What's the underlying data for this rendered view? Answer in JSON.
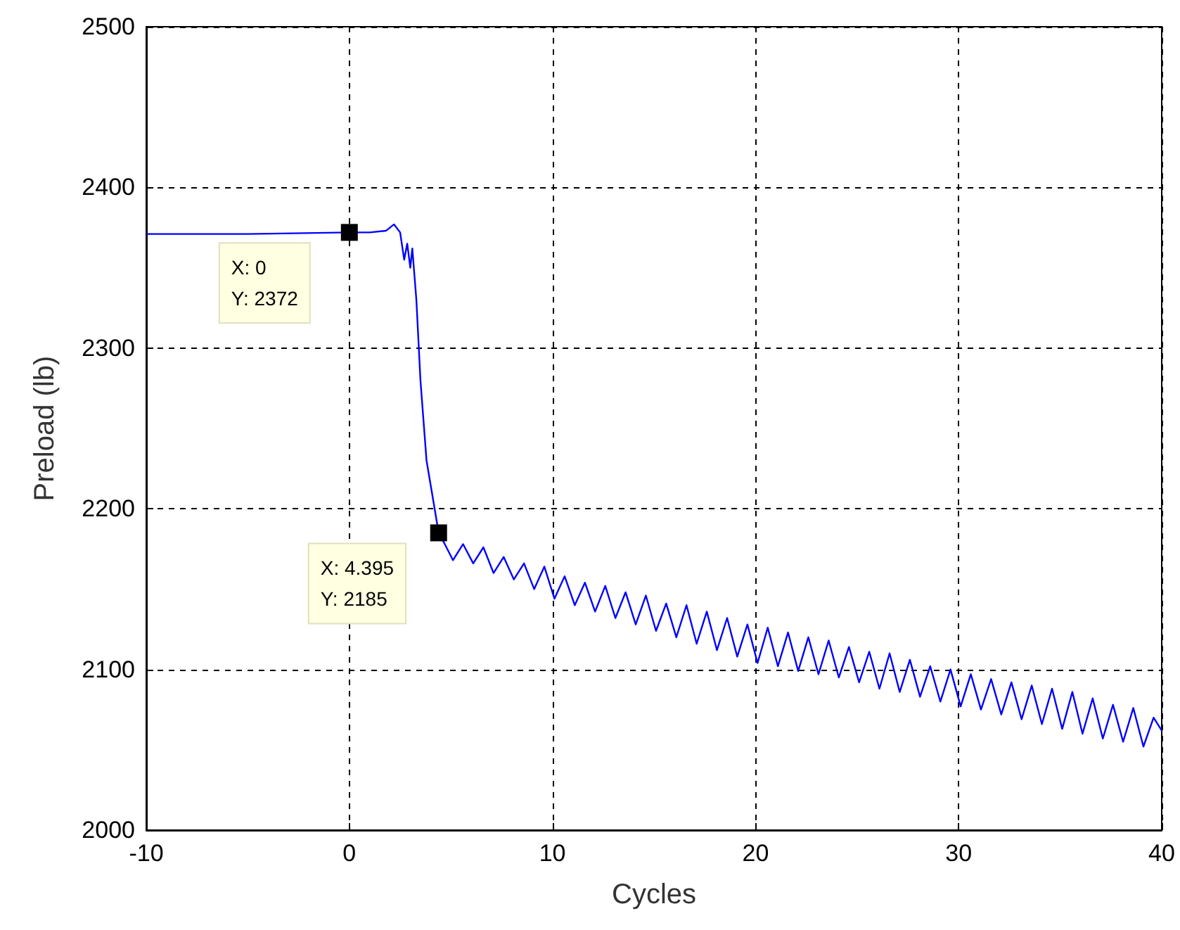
{
  "chart_data": {
    "type": "line",
    "xlabel": "Cycles",
    "ylabel": "Preload (lb)",
    "x": [
      -10,
      -5,
      0,
      1,
      1.8,
      2.2,
      2.5,
      2.7,
      2.85,
      3.0,
      3.1,
      3.3,
      3.5,
      3.8,
      4.2,
      4.395,
      4.7,
      5.1,
      5.6,
      6.1,
      6.6,
      7.1,
      7.6,
      8.1,
      8.6,
      9.1,
      9.6,
      10.1,
      10.6,
      11.1,
      11.6,
      12.1,
      12.6,
      13.1,
      13.6,
      14.1,
      14.6,
      15.1,
      15.6,
      16.1,
      16.6,
      17.1,
      17.6,
      18.1,
      18.6,
      19.1,
      19.6,
      20.1,
      20.6,
      21.1,
      21.6,
      22.1,
      22.6,
      23.1,
      23.6,
      24.1,
      24.6,
      25.1,
      25.6,
      26.1,
      26.6,
      27.1,
      27.6,
      28.1,
      28.6,
      29.1,
      29.6,
      30.1,
      30.6,
      31.1,
      31.6,
      32.1,
      32.6,
      33.1,
      33.6,
      34.1,
      34.6,
      35.1,
      35.6,
      36.1,
      36.6,
      37.1,
      37.6,
      38.1,
      38.6,
      39.1,
      39.6,
      40
    ],
    "series": [
      {
        "color": "#0000ff",
        "values": [
          2371,
          2371,
          2372,
          2372,
          2373,
          2377,
          2372,
          2355,
          2365,
          2350,
          2362,
          2330,
          2280,
          2230,
          2200,
          2185,
          2178,
          2168,
          2178,
          2166,
          2176,
          2160,
          2170,
          2156,
          2166,
          2150,
          2164,
          2144,
          2158,
          2140,
          2154,
          2136,
          2152,
          2132,
          2148,
          2128,
          2146,
          2124,
          2141,
          2120,
          2140,
          2116,
          2136,
          2112,
          2132,
          2108,
          2128,
          2104,
          2126,
          2102,
          2123,
          2099,
          2120,
          2097,
          2118,
          2095,
          2114,
          2092,
          2111,
          2088,
          2110,
          2086,
          2106,
          2083,
          2102,
          2080,
          2100,
          2077,
          2097,
          2075,
          2094,
          2072,
          2092,
          2069,
          2090,
          2066,
          2088,
          2063,
          2086,
          2060,
          2082,
          2057,
          2078,
          2055,
          2076,
          2052,
          2070,
          2062
        ]
      }
    ],
    "xlim": [
      -10,
      40
    ],
    "xticks": [
      -10,
      0,
      10,
      20,
      30,
      40
    ],
    "ylim": [
      2000,
      2500
    ],
    "yticks": [
      2000,
      2100,
      2200,
      2300,
      2400,
      2500
    ],
    "grid": true,
    "marker": "none",
    "line_style": "solid",
    "annotations": [
      {
        "text": "X: 0\nY: 2372",
        "x": 0,
        "y": 2372
      },
      {
        "text": "X: 4.395\nY: 2185",
        "x": 4.395,
        "y": 2185
      }
    ]
  }
}
